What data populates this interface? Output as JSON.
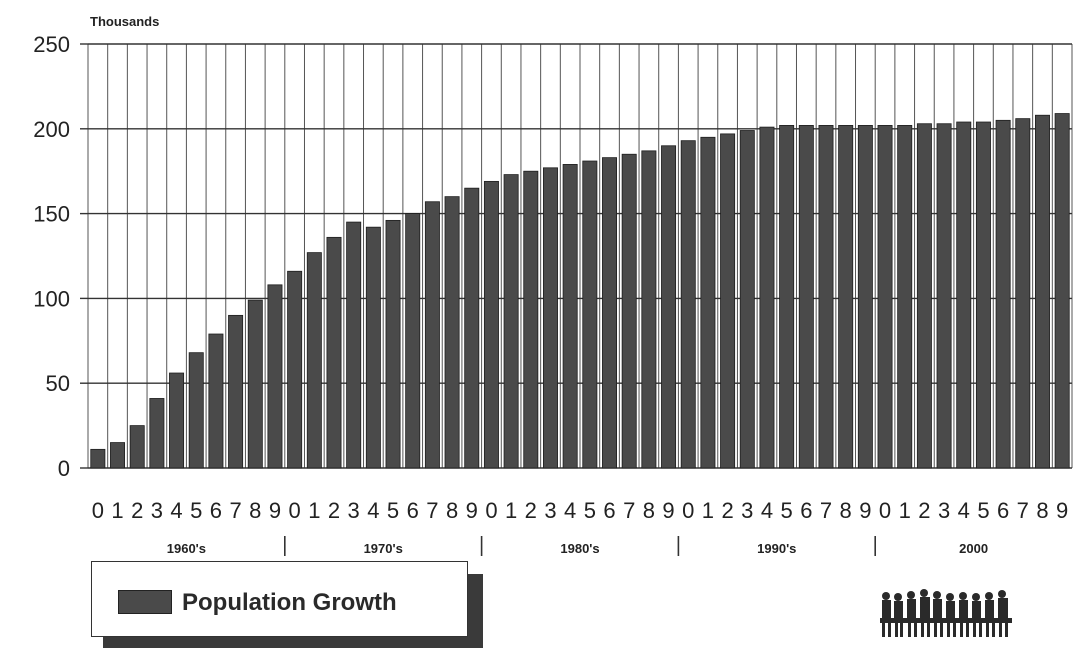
{
  "chart_data": {
    "type": "bar",
    "unit_label": "Thousands",
    "ylim": [
      0,
      250
    ],
    "y_ticks": [
      "0",
      "50",
      "100",
      "150",
      "200",
      "250"
    ],
    "grid": true,
    "categories": [
      "0",
      "1",
      "2",
      "3",
      "4",
      "5",
      "6",
      "7",
      "8",
      "9",
      "0",
      "1",
      "2",
      "3",
      "4",
      "5",
      "6",
      "7",
      "8",
      "9",
      "0",
      "1",
      "2",
      "3",
      "4",
      "5",
      "6",
      "7",
      "8",
      "9",
      "0",
      "1",
      "2",
      "3",
      "4",
      "5",
      "6",
      "7",
      "8",
      "9",
      "0",
      "1",
      "2",
      "3",
      "4",
      "5",
      "6",
      "7",
      "8",
      "9"
    ],
    "decades": [
      "1960's",
      "1970's",
      "1980's",
      "1990's",
      "2000"
    ],
    "series": [
      {
        "name": "Population Growth",
        "color": "#4a4a4a",
        "values": [
          11,
          15,
          25,
          41,
          56,
          68,
          79,
          90,
          99,
          108,
          116,
          127,
          136,
          145,
          142,
          146,
          150,
          157,
          160,
          165,
          169,
          173,
          175,
          177,
          179,
          181,
          183,
          185,
          187,
          190,
          193,
          195,
          197,
          199,
          201,
          202,
          202,
          202,
          202,
          202,
          202,
          202,
          203,
          203,
          204,
          204,
          205,
          206,
          208,
          209
        ]
      }
    ],
    "legend_position": "bottom-left"
  },
  "legend": {
    "label": "Population Growth",
    "icon": "people-crowd-icon"
  }
}
